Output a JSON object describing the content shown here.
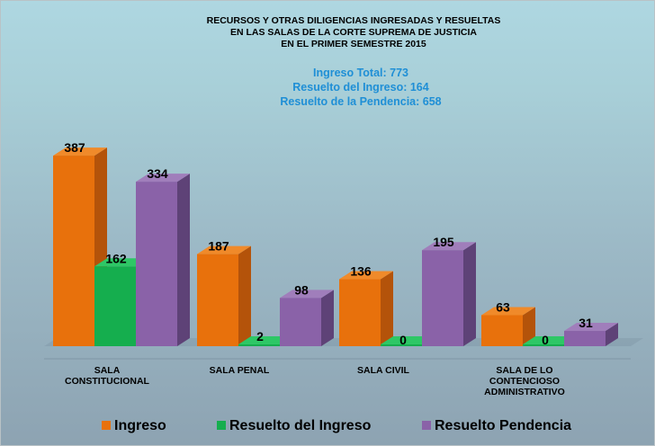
{
  "chart_data": {
    "type": "bar",
    "title_lines": [
      "RECURSOS Y OTRAS DILIGENCIAS INGRESADAS Y RESUELTAS",
      "EN LAS SALAS DE LA CORTE SUPREMA DE JUSTICIA",
      "EN EL PRIMER SEMESTRE 2015"
    ],
    "subtitle_lines": [
      "Ingreso Total: 773",
      "Resuelto del Ingreso: 164",
      "Resuelto de la Pendencia: 658"
    ],
    "categories": [
      [
        "SALA",
        "CONSTITUCIONAL"
      ],
      [
        "SALA PENAL"
      ],
      [
        "SALA CIVIL"
      ],
      [
        "SALA DE LO",
        "CONTENCIOSO",
        "ADMINISTRATIVO"
      ]
    ],
    "series": [
      {
        "name": "Ingreso",
        "values": [
          387,
          187,
          136,
          63
        ],
        "color": "#e8710c",
        "top": "#f08a2a",
        "side": "#b4530a"
      },
      {
        "name": "Resuelto del Ingreso",
        "values": [
          162,
          2,
          0,
          0
        ],
        "color": "#15ae4e",
        "top": "#2ec766",
        "side": "#0e7a36"
      },
      {
        "name": "Resuelto Pendencia",
        "values": [
          334,
          98,
          195,
          31
        ],
        "color": "#8a62a8",
        "top": "#a07ebb",
        "side": "#5e4277"
      }
    ],
    "ylim": [
      0,
      420
    ],
    "legend_position": "bottom",
    "projection": "3d-columns",
    "grid": false
  }
}
